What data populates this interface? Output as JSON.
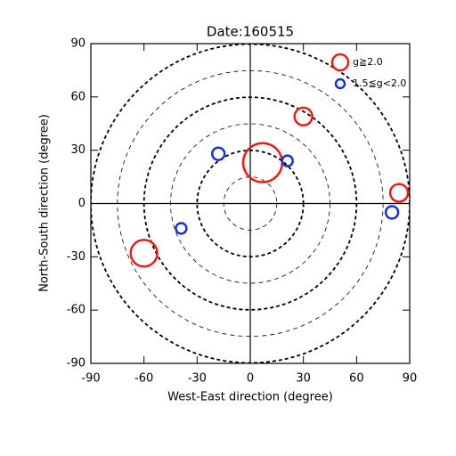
{
  "chart_data": {
    "type": "scatter",
    "title": "Date:160515",
    "x_label": "West-East direction (degree)",
    "y_label": "North-South direction (degree)",
    "xlim": [
      -90,
      90
    ],
    "ylim": [
      -90,
      90
    ],
    "xticks": [
      -90,
      -60,
      -30,
      0,
      30,
      60,
      90
    ],
    "yticks": [
      -90,
      -60,
      -30,
      0,
      30,
      60,
      90
    ],
    "rings": [
      15,
      30,
      45,
      60,
      75,
      90
    ],
    "legend": "upper right",
    "series": [
      {
        "name": "g≧2.0",
        "color": "#e0201b",
        "x": [
          7,
          30,
          84,
          -60
        ],
        "values": [
          23,
          49,
          6,
          -28
        ],
        "sizes": [
          11,
          5,
          5,
          7.5
        ]
      },
      {
        "name": "1.5≦g<2.0",
        "color": "#1a2fd0",
        "x": [
          -18,
          21,
          -39,
          80
        ],
        "values": [
          28,
          24,
          -14,
          -5
        ],
        "sizes": [
          3.5,
          3,
          3,
          3.5
        ]
      }
    ]
  }
}
